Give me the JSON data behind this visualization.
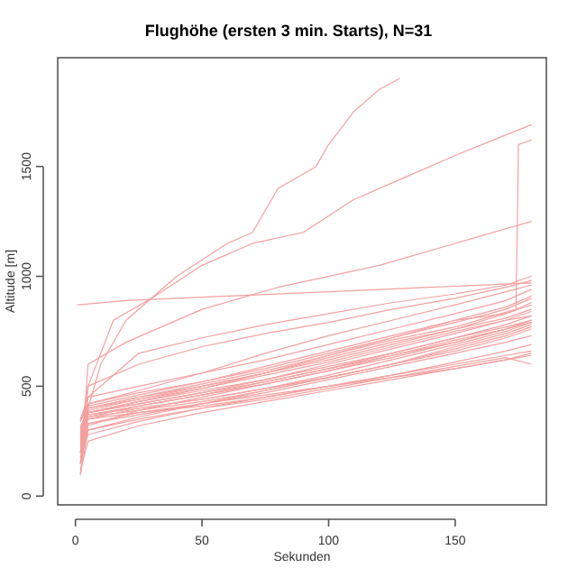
{
  "chart_data": {
    "type": "line",
    "title": "Flughöhe (ersten 3 min. Starts), N=31",
    "xlabel": "Sekunden",
    "ylabel": "Altitude [m]",
    "xlim": [
      -7,
      186
    ],
    "ylim": [
      -40,
      1995
    ],
    "xticks": [
      0,
      50,
      100,
      150
    ],
    "yticks": [
      0,
      500,
      1000,
      1500
    ],
    "grid": false,
    "marker": "none",
    "line_style": "solid",
    "x": [
      2,
      5,
      25,
      50,
      75,
      100,
      125,
      150,
      170,
      180
    ],
    "series": [
      {
        "color": "#f4a0a0",
        "x": [
          2,
          5,
          10,
          20,
          40,
          60,
          70,
          80,
          95,
          100,
          110,
          120,
          128
        ],
        "values": [
          100,
          400,
          600,
          800,
          1000,
          1150,
          1200,
          1400,
          1500,
          1600,
          1750,
          1850,
          1900
        ]
      },
      {
        "color": "#f4a0a0",
        "x": [
          2,
          5,
          15,
          30,
          50,
          70,
          90,
          110,
          130,
          150,
          165,
          180
        ],
        "values": [
          200,
          500,
          800,
          900,
          1050,
          1150,
          1200,
          1350,
          1450,
          1550,
          1620,
          1690
        ]
      },
      {
        "color": "#f4a0a0",
        "x": [
          1,
          20,
          60,
          100,
          140,
          180
        ],
        "values": [
          870,
          890,
          910,
          930,
          950,
          970
        ]
      },
      {
        "color": "#f4a0a0",
        "x": [
          2,
          5,
          20,
          50,
          80,
          120,
          150,
          180
        ],
        "values": [
          150,
          600,
          700,
          850,
          950,
          1050,
          1150,
          1250
        ]
      },
      {
        "color": "#f4a0a0",
        "values": [
          150,
          380,
          420,
          470,
          520,
          580,
          640,
          700,
          760,
          800
        ]
      },
      {
        "color": "#f4a0a0",
        "values": [
          200,
          400,
          450,
          500,
          560,
          620,
          690,
          760,
          830,
          870
        ]
      },
      {
        "color": "#f4a0a0",
        "values": [
          250,
          350,
          400,
          440,
          490,
          540,
          600,
          660,
          720,
          760
        ]
      },
      {
        "color": "#f4a0a0",
        "values": [
          100,
          300,
          360,
          420,
          480,
          540,
          600,
          670,
          730,
          770
        ]
      },
      {
        "color": "#f4a0a0",
        "values": [
          300,
          420,
          470,
          520,
          580,
          650,
          720,
          790,
          850,
          900
        ]
      },
      {
        "color": "#f4a0a0",
        "values": [
          350,
          450,
          500,
          560,
          620,
          690,
          760,
          830,
          890,
          940
        ]
      },
      {
        "color": "#f4a0a0",
        "values": [
          120,
          250,
          320,
          380,
          430,
          480,
          530,
          580,
          620,
          650
        ]
      },
      {
        "color": "#f4a0a0",
        "values": [
          180,
          280,
          340,
          400,
          450,
          500,
          550,
          610,
          660,
          690
        ]
      },
      {
        "color": "#f4a0a0",
        "values": [
          220,
          330,
          380,
          420,
          460,
          500,
          540,
          580,
          620,
          640
        ]
      },
      {
        "color": "#f4a0a0",
        "values": [
          280,
          370,
          410,
          460,
          510,
          570,
          630,
          700,
          760,
          800
        ]
      },
      {
        "color": "#f4a0a0",
        "values": [
          320,
          380,
          420,
          470,
          530,
          600,
          670,
          740,
          800,
          840
        ]
      },
      {
        "color": "#f4a0a0",
        "values": [
          260,
          360,
          390,
          430,
          480,
          540,
          600,
          680,
          740,
          780
        ]
      },
      {
        "color": "#f4a0a0",
        "values": [
          150,
          330,
          370,
          420,
          470,
          530,
          590,
          650,
          700,
          730
        ]
      },
      {
        "color": "#f4a0a0",
        "values": [
          240,
          400,
          440,
          490,
          550,
          610,
          680,
          750,
          800,
          820
        ]
      },
      {
        "color": "#f4a0a0",
        "values": [
          200,
          350,
          380,
          410,
          450,
          500,
          550,
          600,
          640,
          660
        ]
      },
      {
        "color": "#f4a0a0",
        "values": [
          300,
          390,
          440,
          500,
          560,
          630,
          700,
          760,
          810,
          850
        ]
      },
      {
        "color": "#f4a0a0",
        "values": [
          180,
          300,
          350,
          400,
          440,
          490,
          540,
          590,
          630,
          600
        ]
      },
      {
        "color": "#f4a0a0",
        "values": [
          340,
          410,
          460,
          520,
          590,
          660,
          730,
          800,
          860,
          910
        ]
      },
      {
        "color": "#f4a0a0",
        "values": [
          270,
          380,
          430,
          480,
          530,
          590,
          650,
          720,
          780,
          820
        ]
      },
      {
        "color": "#f4a0a0",
        "values": [
          230,
          360,
          410,
          460,
          520,
          580,
          650,
          720,
          770,
          800
        ]
      },
      {
        "color": "#f4a0a0",
        "values": [
          160,
          320,
          390,
          450,
          510,
          570,
          640,
          710,
          760,
          790
        ]
      },
      {
        "color": "#f4a0a0",
        "values": [
          350,
          420,
          480,
          560,
          650,
          730,
          800,
          870,
          930,
          960
        ]
      },
      {
        "color": "#f4a0a0",
        "values": [
          200,
          500,
          600,
          680,
          740,
          790,
          850,
          900,
          950,
          980
        ]
      },
      {
        "color": "#f4a0a0",
        "values": [
          150,
          450,
          650,
          720,
          780,
          830,
          880,
          920,
          960,
          1000
        ]
      },
      {
        "color": "#f4a0a0",
        "values": [
          100,
          380,
          430,
          490,
          560,
          640,
          720,
          800,
          830,
          880
        ]
      },
      {
        "color": "#f4a0a0",
        "values": [
          290,
          370,
          400,
          440,
          490,
          550,
          620,
          690,
          750,
          790
        ]
      },
      {
        "color": "#f4a0a0",
        "x": [
          2,
          5,
          25,
          50,
          75,
          100,
          125,
          150,
          174,
          175,
          180
        ],
        "values": [
          310,
          400,
          450,
          510,
          570,
          640,
          710,
          770,
          850,
          1600,
          1620
        ]
      }
    ]
  }
}
